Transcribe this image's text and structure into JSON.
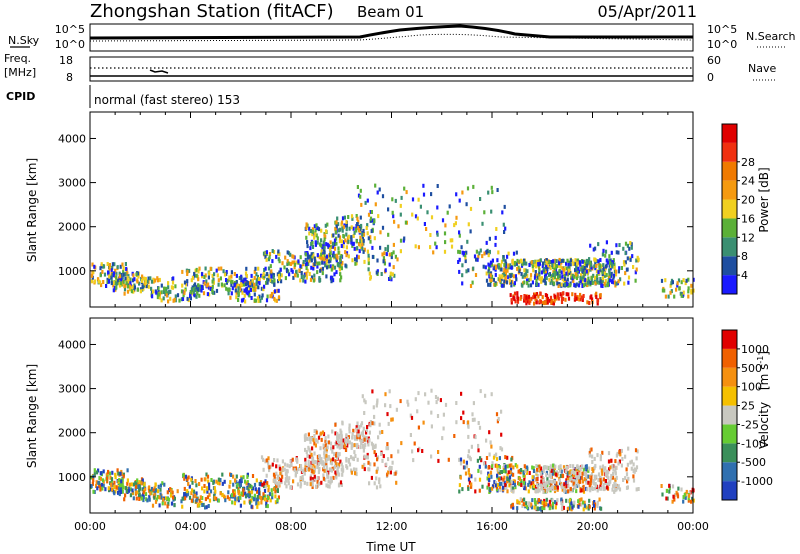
{
  "header": {
    "station": "Zhongshan Station (fitACF)",
    "beam": "Beam 01",
    "date": "05/Apr/2011"
  },
  "noise_panel": {
    "left_label": "N.Sky",
    "left_ticks": [
      "10^5",
      "10^0"
    ],
    "right_ticks": [
      "10^5",
      "10^0"
    ],
    "right_label": "N.Search"
  },
  "freq_panel": {
    "left_label_1": "Freq.",
    "left_label_2": "[MHz]",
    "left_ticks": [
      "18",
      "8"
    ],
    "right_ticks": [
      "60",
      "0"
    ],
    "right_label": "Nave"
  },
  "cpid_panel": {
    "label": "CPID",
    "text": "normal (fast stereo) 153"
  },
  "chart_data": [
    {
      "type": "heatmap",
      "name": "Power",
      "ylabel": "Slant Range [km]",
      "ylim": [
        180,
        4600
      ],
      "yticks": [
        {
          "value": 1000,
          "label": "1000"
        },
        {
          "value": 2000,
          "label": "2000"
        },
        {
          "value": 3000,
          "label": "3000"
        },
        {
          "value": 4000,
          "label": "4000"
        }
      ],
      "colorbar": {
        "label": "Power [dB]",
        "levels": [
          "4",
          "8",
          "12",
          "16",
          "20",
          "24",
          "28"
        ],
        "colors": [
          "#1a1aff",
          "#1e4ea0",
          "#3a8f72",
          "#5bb038",
          "#f0d020",
          "#f59a10",
          "#f07a00",
          "#f03010",
          "#e00000"
        ]
      }
    },
    {
      "type": "heatmap",
      "name": "Velocity",
      "ylabel": "Slant Range [km]",
      "ylim": [
        180,
        4600
      ],
      "yticks": [
        {
          "value": 1000,
          "label": "1000"
        },
        {
          "value": 2000,
          "label": "2000"
        },
        {
          "value": 3000,
          "label": "3000"
        },
        {
          "value": 4000,
          "label": "4000"
        }
      ],
      "xlabel": "Time UT",
      "xticks": [
        "00:00",
        "04:00",
        "08:00",
        "12:00",
        "16:00",
        "20:00",
        "00:00"
      ],
      "colorbar": {
        "label_main": "Velocity",
        "label_unit_1": "[m s",
        "label_unit_sup": "-1",
        "label_unit_2": "]",
        "levels": [
          "1000",
          "500",
          "100",
          "25",
          "-25",
          "-100",
          "-500",
          "-1000"
        ],
        "colors": [
          "#2040c0",
          "#3070b0",
          "#3a8f5a",
          "#66cc33",
          "#c8c8c0",
          "#f5c000",
          "#f59010",
          "#f06000",
          "#e00000"
        ]
      }
    }
  ]
}
